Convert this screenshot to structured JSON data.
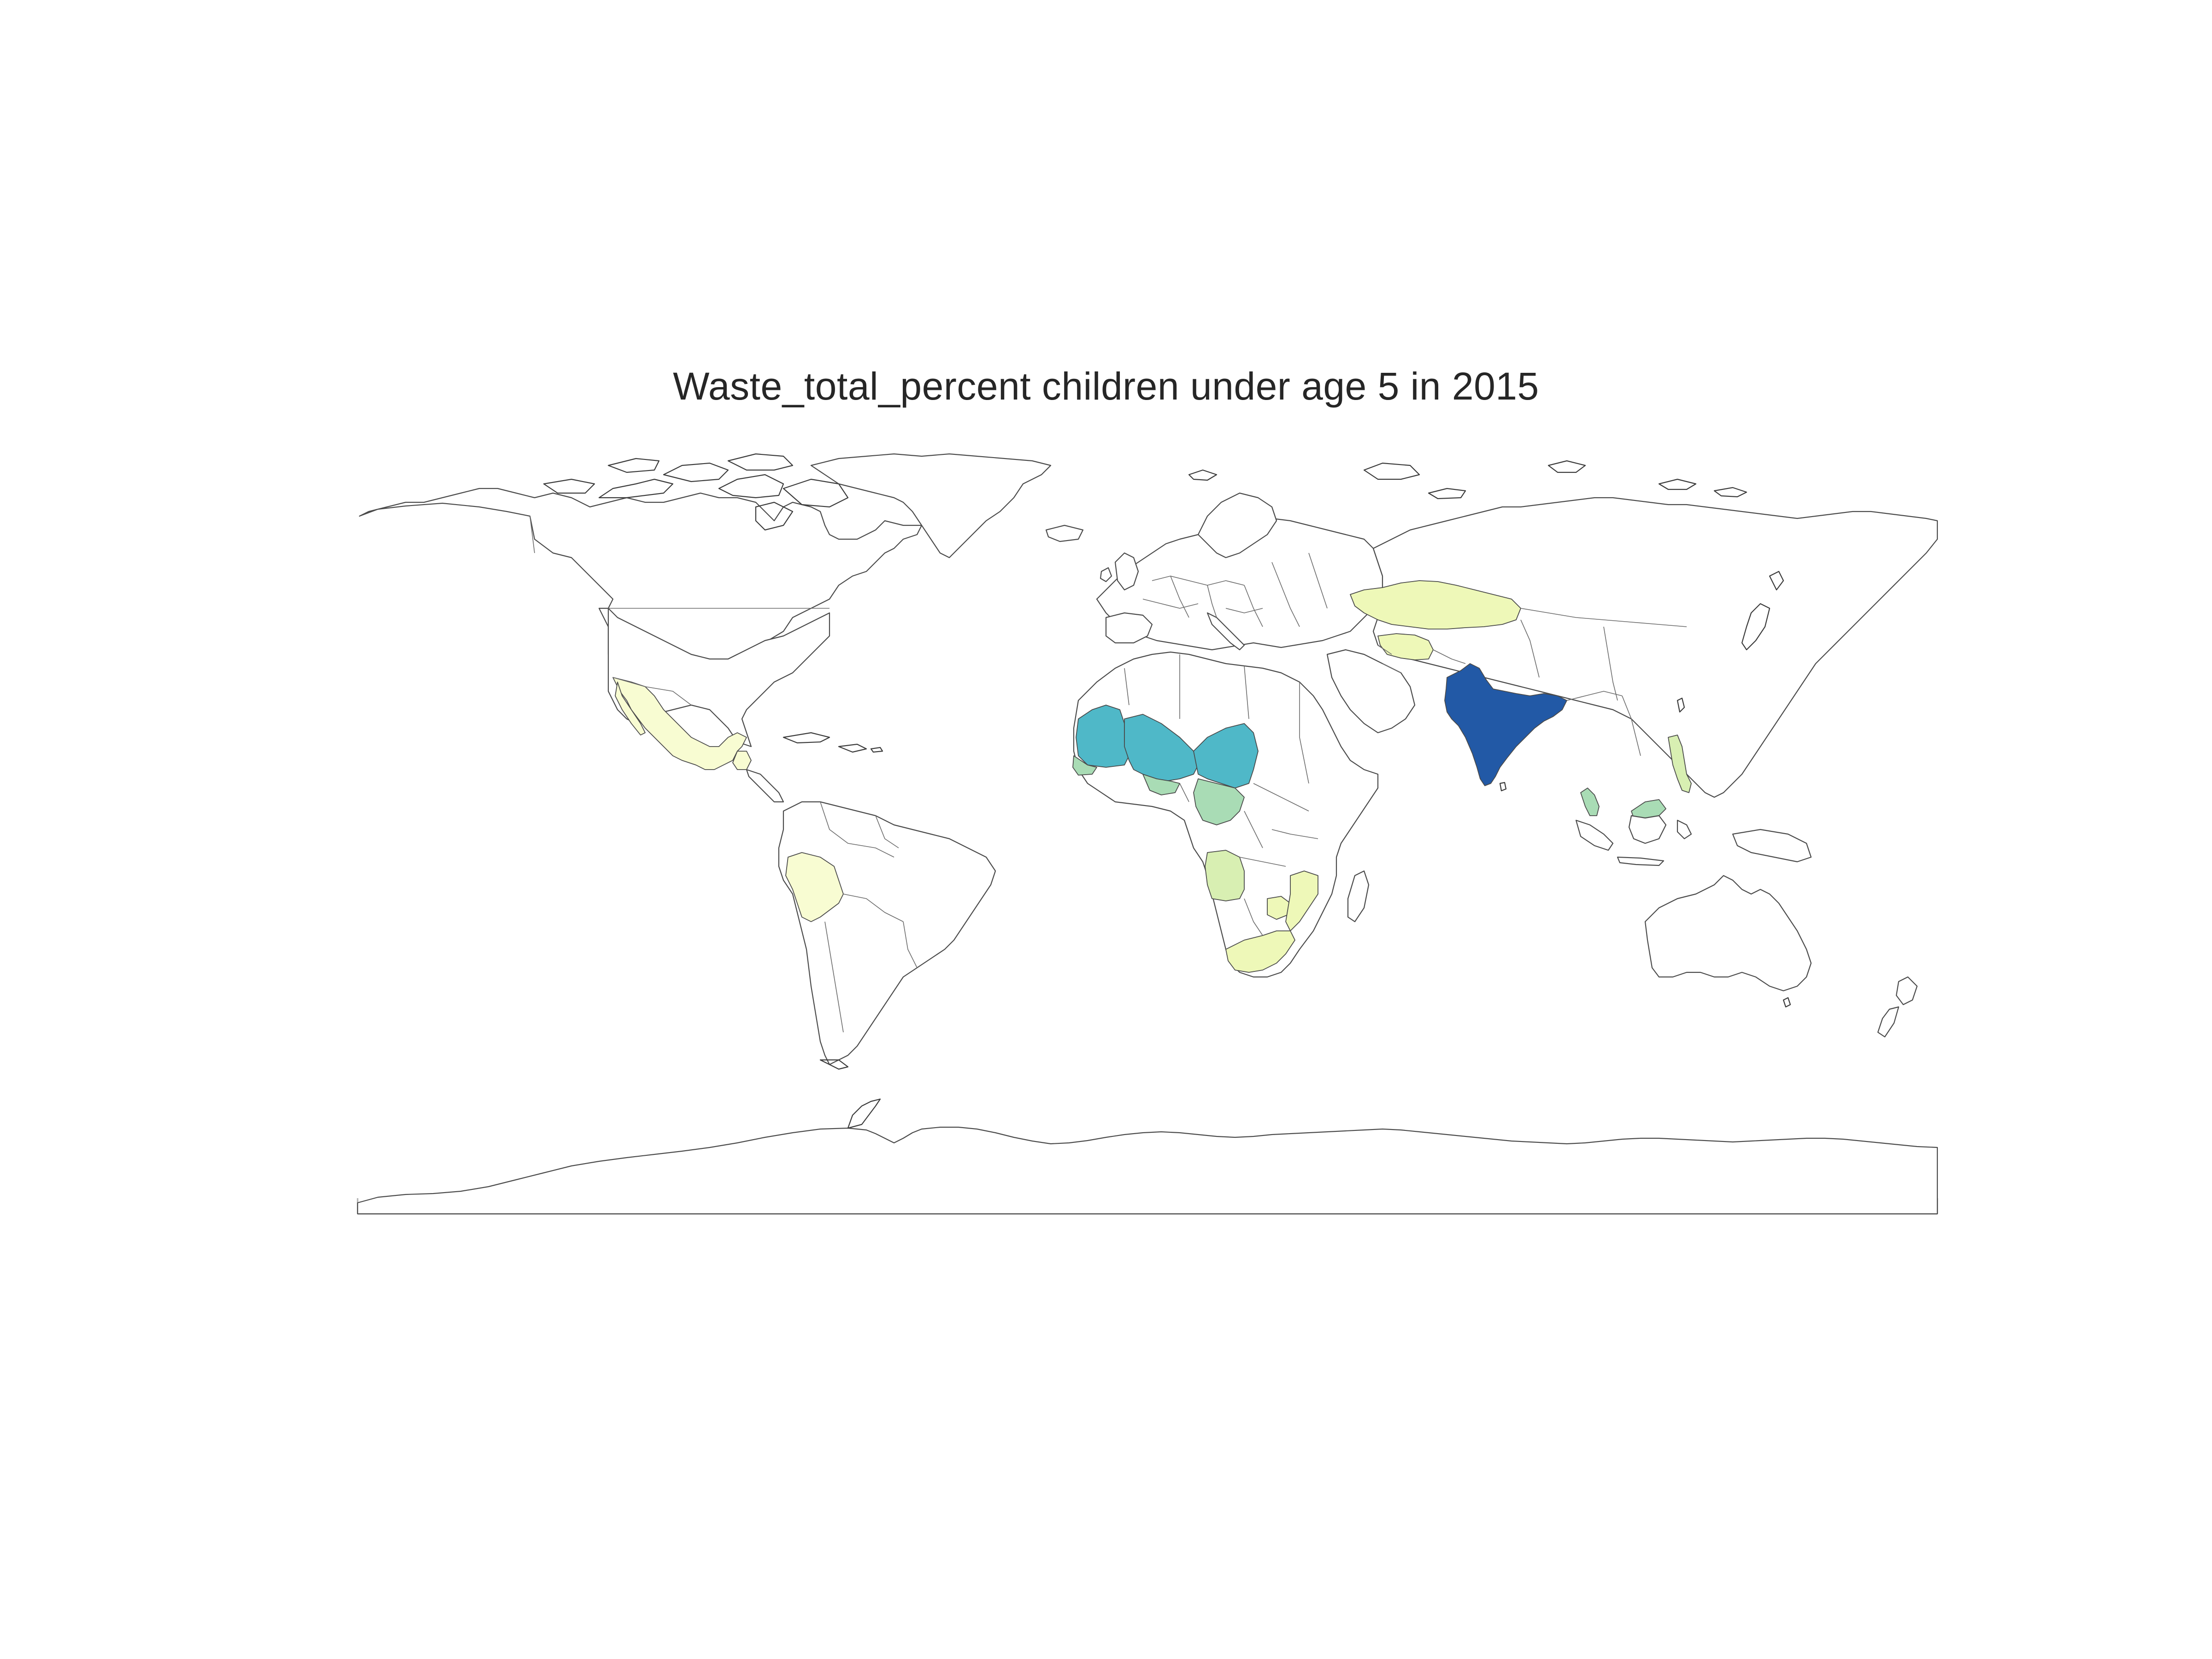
{
  "title": "Waste_total_percent children under age 5 in 2015",
  "map": {
    "projection": "plate-carree",
    "colormap": "YlGnBu",
    "colors": {
      "highest": "#2259a6",
      "high": "#4fb8c8",
      "mid": "#a9dcb5",
      "low_mid": "#d8efb2",
      "low": "#eef8b8",
      "lowest": "#f8fcd2",
      "no_data": "#ffffff",
      "outline": "#4a4a4a"
    },
    "shaded_countries": [
      {
        "name": "India",
        "level": "highest"
      },
      {
        "name": "Mauritania",
        "level": "high"
      },
      {
        "name": "Mali",
        "level": "high"
      },
      {
        "name": "Niger",
        "level": "high"
      },
      {
        "name": "Burkina Faso",
        "level": "mid"
      },
      {
        "name": "Nigeria",
        "level": "mid"
      },
      {
        "name": "Senegal",
        "level": "mid"
      },
      {
        "name": "Malaysia",
        "level": "mid"
      },
      {
        "name": "Philippines",
        "level": "low_mid"
      },
      {
        "name": "Angola",
        "level": "low_mid"
      },
      {
        "name": "Kazakhstan",
        "level": "low"
      },
      {
        "name": "Turkmenistan",
        "level": "low"
      },
      {
        "name": "South Africa",
        "level": "low"
      },
      {
        "name": "Zimbabwe",
        "level": "low"
      },
      {
        "name": "Mozambique",
        "level": "low"
      },
      {
        "name": "Mexico",
        "level": "lowest"
      },
      {
        "name": "Peru",
        "level": "lowest"
      },
      {
        "name": "Guatemala",
        "level": "lowest"
      }
    ]
  }
}
